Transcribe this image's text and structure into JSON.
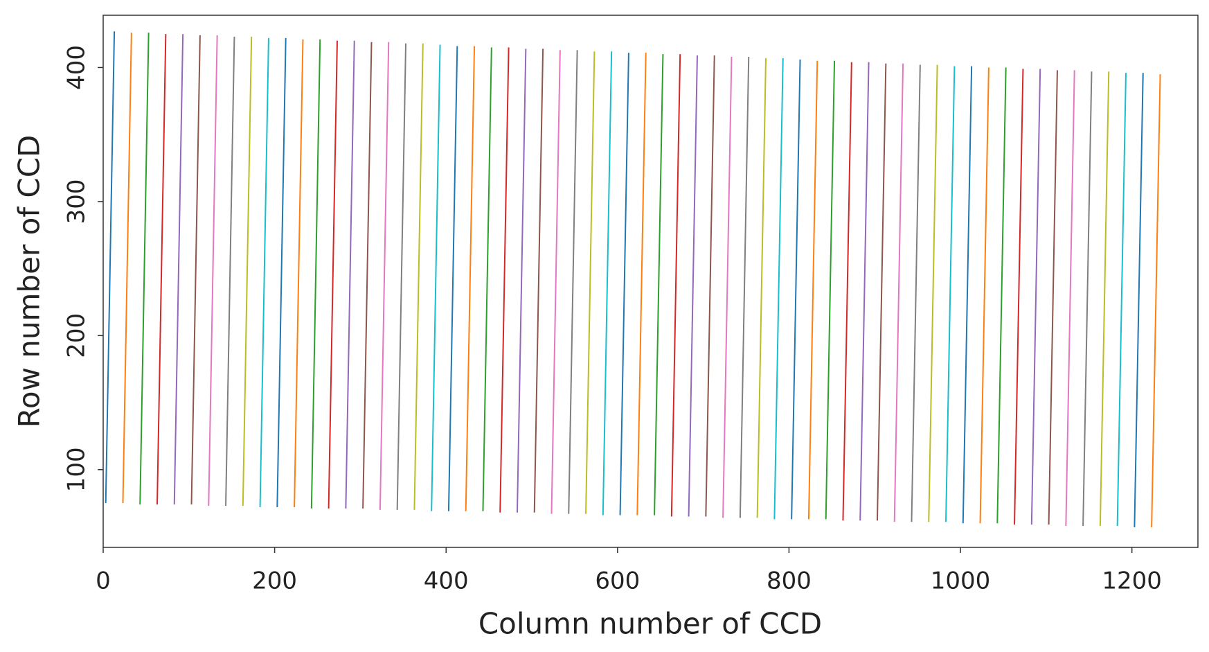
{
  "chart_data": {
    "type": "line",
    "xlabel": "Column number of CCD",
    "ylabel": "Row number of CCD",
    "xlim": [
      0,
      1277
    ],
    "ylim": [
      42,
      439
    ],
    "xticks": [
      0,
      200,
      400,
      600,
      800,
      1000,
      1200
    ],
    "yticks": [
      100,
      200,
      300,
      400
    ],
    "colors": [
      "#1f77b4",
      "#ff7f0e",
      "#2ca02c",
      "#d62728",
      "#9467bd",
      "#8c564b",
      "#e377c2",
      "#7f7f7f",
      "#bcbd22",
      "#17becf"
    ],
    "series": [
      {
        "x": [
          3,
          13
        ],
        "values": [
          75,
          427
        ]
      },
      {
        "x": [
          23,
          33
        ],
        "values": [
          75,
          426
        ]
      },
      {
        "x": [
          43,
          53
        ],
        "values": [
          74,
          426
        ]
      },
      {
        "x": [
          63,
          73
        ],
        "values": [
          74,
          425
        ]
      },
      {
        "x": [
          83,
          93
        ],
        "values": [
          74,
          425
        ]
      },
      {
        "x": [
          103,
          113
        ],
        "values": [
          74,
          424
        ]
      },
      {
        "x": [
          123,
          133
        ],
        "values": [
          73,
          424
        ]
      },
      {
        "x": [
          143,
          153
        ],
        "values": [
          73,
          423
        ]
      },
      {
        "x": [
          163,
          173
        ],
        "values": [
          73,
          423
        ]
      },
      {
        "x": [
          183,
          193
        ],
        "values": [
          72,
          422
        ]
      },
      {
        "x": [
          203,
          213
        ],
        "values": [
          72,
          422
        ]
      },
      {
        "x": [
          223,
          233
        ],
        "values": [
          72,
          421
        ]
      },
      {
        "x": [
          243,
          253
        ],
        "values": [
          71,
          421
        ]
      },
      {
        "x": [
          263,
          273
        ],
        "values": [
          71,
          420
        ]
      },
      {
        "x": [
          283,
          293
        ],
        "values": [
          71,
          420
        ]
      },
      {
        "x": [
          303,
          313
        ],
        "values": [
          71,
          419
        ]
      },
      {
        "x": [
          323,
          333
        ],
        "values": [
          70,
          419
        ]
      },
      {
        "x": [
          343,
          353
        ],
        "values": [
          70,
          418
        ]
      },
      {
        "x": [
          363,
          373
        ],
        "values": [
          70,
          418
        ]
      },
      {
        "x": [
          383,
          393
        ],
        "values": [
          69,
          417
        ]
      },
      {
        "x": [
          403,
          413
        ],
        "values": [
          69,
          416
        ]
      },
      {
        "x": [
          423,
          433
        ],
        "values": [
          69,
          416
        ]
      },
      {
        "x": [
          443,
          453
        ],
        "values": [
          69,
          415
        ]
      },
      {
        "x": [
          463,
          473
        ],
        "values": [
          68,
          415
        ]
      },
      {
        "x": [
          483,
          493
        ],
        "values": [
          68,
          414
        ]
      },
      {
        "x": [
          503,
          513
        ],
        "values": [
          68,
          414
        ]
      },
      {
        "x": [
          523,
          533
        ],
        "values": [
          67,
          413
        ]
      },
      {
        "x": [
          543,
          553
        ],
        "values": [
          67,
          413
        ]
      },
      {
        "x": [
          563,
          573
        ],
        "values": [
          67,
          412
        ]
      },
      {
        "x": [
          583,
          593
        ],
        "values": [
          66,
          412
        ]
      },
      {
        "x": [
          603,
          613
        ],
        "values": [
          66,
          411
        ]
      },
      {
        "x": [
          623,
          633
        ],
        "values": [
          66,
          411
        ]
      },
      {
        "x": [
          643,
          653
        ],
        "values": [
          66,
          410
        ]
      },
      {
        "x": [
          663,
          673
        ],
        "values": [
          65,
          410
        ]
      },
      {
        "x": [
          683,
          693
        ],
        "values": [
          65,
          409
        ]
      },
      {
        "x": [
          703,
          713
        ],
        "values": [
          65,
          409
        ]
      },
      {
        "x": [
          723,
          733
        ],
        "values": [
          64,
          408
        ]
      },
      {
        "x": [
          743,
          753
        ],
        "values": [
          64,
          408
        ]
      },
      {
        "x": [
          763,
          773
        ],
        "values": [
          64,
          407
        ]
      },
      {
        "x": [
          783,
          793
        ],
        "values": [
          63,
          407
        ]
      },
      {
        "x": [
          803,
          813
        ],
        "values": [
          63,
          406
        ]
      },
      {
        "x": [
          823,
          833
        ],
        "values": [
          63,
          405
        ]
      },
      {
        "x": [
          843,
          853
        ],
        "values": [
          63,
          405
        ]
      },
      {
        "x": [
          863,
          873
        ],
        "values": [
          62,
          404
        ]
      },
      {
        "x": [
          883,
          893
        ],
        "values": [
          62,
          404
        ]
      },
      {
        "x": [
          903,
          913
        ],
        "values": [
          62,
          403
        ]
      },
      {
        "x": [
          923,
          933
        ],
        "values": [
          61,
          403
        ]
      },
      {
        "x": [
          943,
          953
        ],
        "values": [
          61,
          402
        ]
      },
      {
        "x": [
          963,
          973
        ],
        "values": [
          61,
          402
        ]
      },
      {
        "x": [
          983,
          993
        ],
        "values": [
          61,
          401
        ]
      },
      {
        "x": [
          1003,
          1013
        ],
        "values": [
          60,
          401
        ]
      },
      {
        "x": [
          1023,
          1033
        ],
        "values": [
          60,
          400
        ]
      },
      {
        "x": [
          1043,
          1053
        ],
        "values": [
          60,
          400
        ]
      },
      {
        "x": [
          1063,
          1073
        ],
        "values": [
          59,
          399
        ]
      },
      {
        "x": [
          1083,
          1093
        ],
        "values": [
          59,
          399
        ]
      },
      {
        "x": [
          1103,
          1113
        ],
        "values": [
          59,
          398
        ]
      },
      {
        "x": [
          1123,
          1133
        ],
        "values": [
          58,
          398
        ]
      },
      {
        "x": [
          1143,
          1153
        ],
        "values": [
          58,
          397
        ]
      },
      {
        "x": [
          1163,
          1173
        ],
        "values": [
          58,
          397
        ]
      },
      {
        "x": [
          1183,
          1193
        ],
        "values": [
          58,
          396
        ]
      },
      {
        "x": [
          1203,
          1213
        ],
        "values": [
          57,
          396
        ]
      },
      {
        "x": [
          1223,
          1233
        ],
        "values": [
          57,
          395
        ]
      }
    ]
  }
}
